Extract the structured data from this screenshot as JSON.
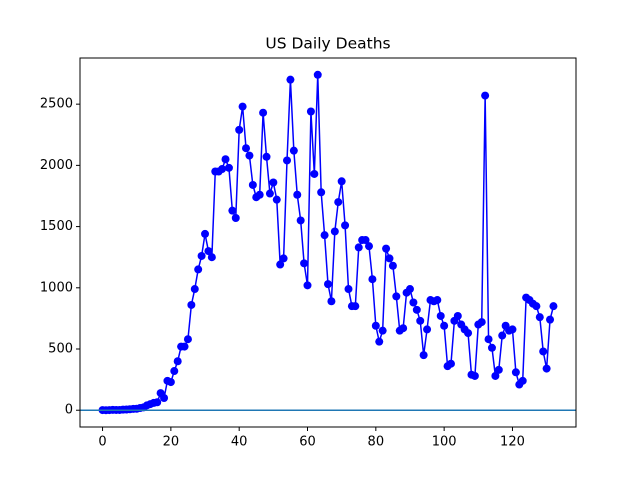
{
  "chart_data": {
    "type": "line",
    "title": "US Daily Deaths",
    "x": [
      0,
      1,
      2,
      3,
      4,
      5,
      6,
      7,
      8,
      9,
      10,
      11,
      12,
      13,
      14,
      15,
      16,
      17,
      18,
      19,
      20,
      21,
      22,
      23,
      24,
      25,
      26,
      27,
      28,
      29,
      30,
      31,
      32,
      33,
      34,
      35,
      36,
      37,
      38,
      39,
      40,
      41,
      42,
      43,
      44,
      45,
      46,
      47,
      48,
      49,
      50,
      51,
      52,
      53,
      54,
      55,
      56,
      57,
      58,
      59,
      60,
      61,
      62,
      63,
      64,
      65,
      66,
      67,
      68,
      69,
      70,
      71,
      72,
      73,
      74,
      75,
      76,
      77,
      78,
      79,
      80,
      81,
      82,
      83,
      84,
      85,
      86,
      87,
      88,
      89,
      90,
      91,
      92,
      93,
      94,
      95,
      96,
      97,
      98,
      99,
      100,
      101,
      102,
      103,
      104,
      105,
      106,
      107,
      108,
      109,
      110,
      111,
      112,
      113,
      114,
      115,
      116,
      117,
      118,
      119,
      120,
      121,
      122,
      123,
      124,
      125,
      126,
      127,
      128,
      129,
      130,
      131,
      132
    ],
    "values": [
      1,
      0,
      1,
      3,
      2,
      2,
      5,
      6,
      8,
      11,
      12,
      18,
      23,
      40,
      50,
      60,
      65,
      140,
      100,
      240,
      230,
      320,
      400,
      520,
      520,
      580,
      860,
      990,
      1150,
      1260,
      1440,
      1300,
      1250,
      1950,
      1950,
      1970,
      2050,
      1980,
      1630,
      1570,
      2290,
      2480,
      2140,
      2080,
      1840,
      1740,
      1760,
      2430,
      2070,
      1770,
      1860,
      1720,
      1190,
      1240,
      2040,
      2700,
      2120,
      1760,
      1550,
      1200,
      1020,
      2440,
      1930,
      2740,
      1780,
      1430,
      1030,
      890,
      1460,
      1700,
      1870,
      1510,
      990,
      850,
      850,
      1330,
      1390,
      1390,
      1340,
      1070,
      690,
      560,
      650,
      1320,
      1240,
      1180,
      930,
      650,
      670,
      960,
      990,
      880,
      820,
      730,
      450,
      660,
      900,
      890,
      900,
      770,
      690,
      360,
      380,
      730,
      770,
      700,
      660,
      630,
      290,
      280,
      700,
      720,
      2570,
      580,
      510,
      280,
      330,
      610,
      690,
      650,
      660,
      310,
      210,
      240,
      920,
      900,
      870,
      850,
      760,
      480,
      340,
      740,
      850
    ],
    "color": "#0000ff",
    "marker": "circle",
    "hline": 0,
    "hline_color": "#1f77b4",
    "xlim": [
      -6.6,
      138.6
    ],
    "xticks": [
      0,
      20,
      40,
      60,
      80,
      100,
      120
    ],
    "ylim": [
      -137,
      2877
    ],
    "yticks": [
      0,
      500,
      1000,
      1500,
      2000,
      2500
    ],
    "grid": false
  }
}
